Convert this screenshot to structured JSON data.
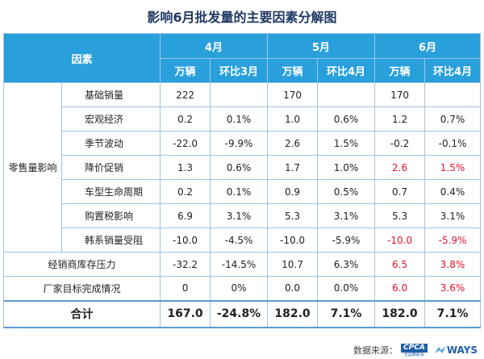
{
  "title": "影响6月批发量的主要因素分解图",
  "header": {
    "factor_label": "因素",
    "months": [
      "4月",
      "5月",
      "6月"
    ],
    "subcols": [
      "万辆",
      "环比3月",
      "万辆",
      "环比4月",
      "万辆",
      "环比4月"
    ]
  },
  "group_label": "零售量影响",
  "rows": [
    {
      "label": "基础销量",
      "cells": [
        {
          "v": "222"
        },
        {
          "v": ""
        },
        {
          "v": "170"
        },
        {
          "v": ""
        },
        {
          "v": "170"
        },
        {
          "v": ""
        }
      ]
    },
    {
      "label": "宏观经济",
      "cells": [
        {
          "v": "0.2"
        },
        {
          "v": "0.1%"
        },
        {
          "v": "1.0"
        },
        {
          "v": "0.6%"
        },
        {
          "v": "1.2"
        },
        {
          "v": "0.7%"
        }
      ]
    },
    {
      "label": "季节波动",
      "cells": [
        {
          "v": "-22.0"
        },
        {
          "v": "-9.9%"
        },
        {
          "v": "2.6"
        },
        {
          "v": "1.5%"
        },
        {
          "v": "-0.2"
        },
        {
          "v": "-0.1%"
        }
      ]
    },
    {
      "label": "降价促销",
      "cells": [
        {
          "v": "1.3"
        },
        {
          "v": "0.6%"
        },
        {
          "v": "1.7"
        },
        {
          "v": "1.0%"
        },
        {
          "v": "2.6",
          "red": true
        },
        {
          "v": "1.5%",
          "red": true
        }
      ]
    },
    {
      "label": "车型生命周期",
      "cells": [
        {
          "v": "0.2"
        },
        {
          "v": "0.1%"
        },
        {
          "v": "0.9"
        },
        {
          "v": "0.5%"
        },
        {
          "v": "0.7"
        },
        {
          "v": "0.4%"
        }
      ]
    },
    {
      "label": "购置税影响",
      "cells": [
        {
          "v": "6.9"
        },
        {
          "v": "3.1%"
        },
        {
          "v": "5.3"
        },
        {
          "v": "3.1%"
        },
        {
          "v": "5.3"
        },
        {
          "v": "3.1%"
        }
      ]
    },
    {
      "label": "韩系销量受阻",
      "cells": [
        {
          "v": "-10.0"
        },
        {
          "v": "-4.5%"
        },
        {
          "v": "-10.0"
        },
        {
          "v": "-5.9%"
        },
        {
          "v": "-10.0",
          "red": true
        },
        {
          "v": "-5.9%",
          "red": true
        }
      ]
    }
  ],
  "wide_rows": [
    {
      "label": "经销商库存压力",
      "cells": [
        {
          "v": "-32.2"
        },
        {
          "v": "-14.5%"
        },
        {
          "v": "10.7"
        },
        {
          "v": "6.3%"
        },
        {
          "v": "6.5",
          "red": true
        },
        {
          "v": "3.8%",
          "red": true
        }
      ]
    },
    {
      "label": "厂家目标完成情况",
      "cells": [
        {
          "v": "0"
        },
        {
          "v": "0%"
        },
        {
          "v": "0.0"
        },
        {
          "v": "0.0%"
        },
        {
          "v": "6.0",
          "red": true
        },
        {
          "v": "3.6%",
          "red": true
        }
      ]
    }
  ],
  "total": {
    "label": "合计",
    "cells": [
      {
        "v": "167.0"
      },
      {
        "v": "-24.8%"
      },
      {
        "v": "182.0"
      },
      {
        "v": "7.1%"
      },
      {
        "v": "182.0"
      },
      {
        "v": "7.1%"
      }
    ]
  },
  "footer": {
    "source_label": "数据来源：",
    "logo1_text": "CPCA",
    "logo1_sub": "全国乘联会",
    "logo2_text": "WAYS"
  }
}
